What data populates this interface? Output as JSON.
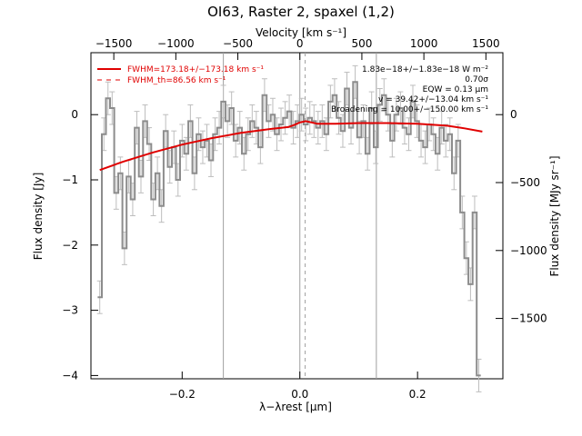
{
  "chart_data": {
    "type": "line",
    "title": "OI63, Raster 2, spaxel (1,2)",
    "xlabel": "λ−λrest [μm]",
    "ylabel": "Flux density [Jy]",
    "y2label": "Flux density [MJy sr⁻¹]",
    "top_label": "Velocity [km s⁻¹]",
    "xlim": [
      -0.355,
      0.345
    ],
    "ylim": [
      -4.05,
      0.95
    ],
    "x_ticks": [
      -0.2,
      0.0,
      0.2
    ],
    "x_tick_labels": [
      "−0.2",
      "0.0",
      "0.2"
    ],
    "y_ticks": [
      -4,
      -3,
      -2,
      -1,
      0
    ],
    "y_tick_labels": [
      "−4",
      "−3",
      "−2",
      "−1",
      "0"
    ],
    "top_ticks": [
      -1500,
      -1000,
      -500,
      0,
      500,
      1000,
      1500
    ],
    "top_tick_labels": [
      "−1500",
      "−1000",
      "−500",
      "0",
      "500",
      "1000",
      "1500"
    ],
    "y2_ticks": [
      0,
      -500,
      -1000,
      -1500
    ],
    "y2_tick_labels": [
      "0",
      "−500",
      "−1000",
      "−1500"
    ],
    "vlines_solid": [
      -0.13,
      0.0,
      0.13
    ],
    "vline_dashed": 0.009,
    "legend": {
      "placement": "top-left",
      "entries": [
        {
          "label": "FWHM=173.18+/−173.18 km s⁻¹",
          "style": "solid"
        },
        {
          "label": "FWHM_th=86.56 km s⁻¹",
          "style": "dashed"
        }
      ]
    },
    "annotations": [
      "1.83e−18+/−1.83e−18 W m⁻²",
      "0.70σ",
      "EQW = 0.13 μm",
      "v = 39.42+/−13.04 km s⁻¹",
      "Broadening = 10.00+/−150.00 km s⁻¹"
    ],
    "colors": {
      "data": "#8c8c8c",
      "errorbar": "#bdbdbd",
      "fit": "#e00000",
      "vline": "#a0a0a0"
    },
    "series": [
      {
        "role": "data",
        "x": [
          -0.34,
          -0.333,
          -0.326,
          -0.319,
          -0.312,
          -0.305,
          -0.298,
          -0.291,
          -0.284,
          -0.277,
          -0.27,
          -0.263,
          -0.256,
          -0.249,
          -0.242,
          -0.235,
          -0.228,
          -0.221,
          -0.214,
          -0.207,
          -0.2,
          -0.193,
          -0.186,
          -0.179,
          -0.172,
          -0.165,
          -0.158,
          -0.151,
          -0.144,
          -0.137,
          -0.13,
          -0.123,
          -0.116,
          -0.109,
          -0.102,
          -0.095,
          -0.088,
          -0.081,
          -0.074,
          -0.067,
          -0.06,
          -0.053,
          -0.046,
          -0.039,
          -0.032,
          -0.025,
          -0.018,
          -0.011,
          -0.004,
          0.003,
          0.01,
          0.017,
          0.024,
          0.031,
          0.038,
          0.045,
          0.052,
          0.059,
          0.066,
          0.073,
          0.08,
          0.087,
          0.094,
          0.101,
          0.108,
          0.115,
          0.122,
          0.129,
          0.136,
          0.143,
          0.15,
          0.157,
          0.164,
          0.171,
          0.178,
          0.185,
          0.192,
          0.199,
          0.206,
          0.213,
          0.22,
          0.227,
          0.234,
          0.241,
          0.248,
          0.255,
          0.262,
          0.269,
          0.276,
          0.283,
          0.29,
          0.297,
          0.304
        ],
        "y": [
          -2.8,
          -0.3,
          0.25,
          0.1,
          -1.2,
          -0.9,
          -2.05,
          -0.95,
          -1.3,
          -0.2,
          -0.95,
          -0.1,
          -0.45,
          -1.3,
          -0.9,
          -1.4,
          -0.25,
          -0.8,
          -0.5,
          -1.0,
          -0.4,
          -0.6,
          -0.1,
          -0.9,
          -0.3,
          -0.5,
          -0.4,
          -0.7,
          -0.3,
          -0.2,
          0.2,
          -0.1,
          0.1,
          -0.4,
          -0.2,
          -0.6,
          -0.3,
          -0.1,
          -0.2,
          -0.5,
          0.3,
          -0.1,
          0.0,
          -0.3,
          -0.15,
          -0.05,
          0.05,
          -0.2,
          -0.1,
          0.0,
          -0.15,
          -0.05,
          -0.1,
          -0.2,
          -0.1,
          -0.3,
          0.2,
          0.3,
          -0.05,
          -0.25,
          0.4,
          -0.2,
          0.5,
          -0.35,
          -0.1,
          -0.6,
          0.1,
          -0.5,
          0.15,
          0.3,
          0.0,
          -0.4,
          0.0,
          0.1,
          -0.2,
          -0.3,
          0.2,
          -0.1,
          -0.4,
          -0.5,
          -0.15,
          -0.3,
          -0.6,
          -0.2,
          -0.4,
          -0.3,
          -0.9,
          -0.4,
          -1.5,
          -2.2,
          -2.6,
          -1.5,
          -4.0
        ],
        "err": 0.25
      },
      {
        "role": "fit",
        "x": [
          -0.34,
          -0.3,
          -0.25,
          -0.2,
          -0.15,
          -0.1,
          -0.05,
          -0.02,
          -0.01,
          0.0,
          0.01,
          0.02,
          0.03,
          0.06,
          0.1,
          0.15,
          0.2,
          0.25,
          0.28,
          0.31
        ],
        "y": [
          -0.85,
          -0.72,
          -0.58,
          -0.46,
          -0.36,
          -0.28,
          -0.22,
          -0.19,
          -0.16,
          -0.12,
          -0.1,
          -0.12,
          -0.14,
          -0.14,
          -0.13,
          -0.13,
          -0.14,
          -0.17,
          -0.21,
          -0.26
        ]
      }
    ]
  }
}
